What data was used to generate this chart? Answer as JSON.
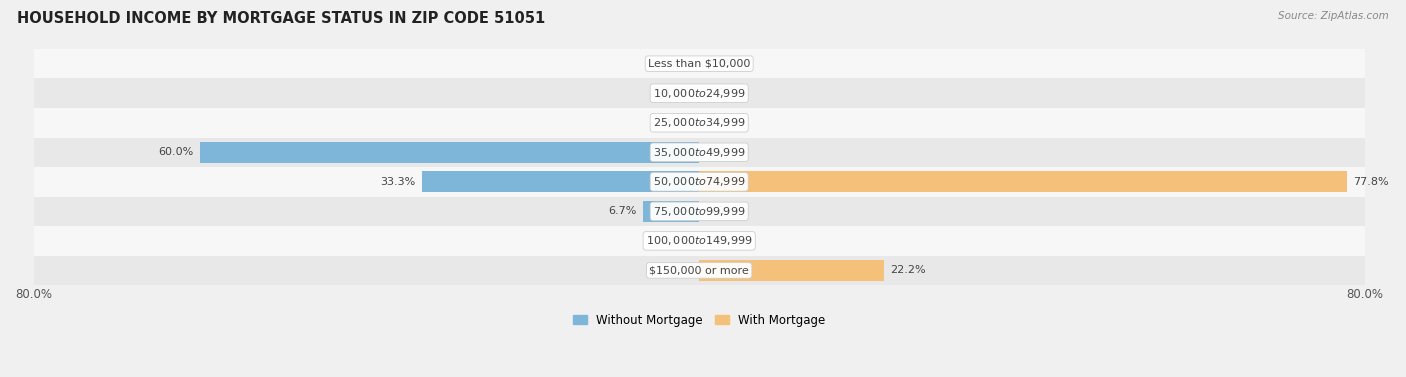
{
  "title": "HOUSEHOLD INCOME BY MORTGAGE STATUS IN ZIP CODE 51051",
  "source": "Source: ZipAtlas.com",
  "categories": [
    "Less than $10,000",
    "$10,000 to $24,999",
    "$25,000 to $34,999",
    "$35,000 to $49,999",
    "$50,000 to $74,999",
    "$75,000 to $99,999",
    "$100,000 to $149,999",
    "$150,000 or more"
  ],
  "without_mortgage": [
    0.0,
    0.0,
    0.0,
    60.0,
    33.3,
    6.7,
    0.0,
    0.0
  ],
  "with_mortgage": [
    0.0,
    0.0,
    0.0,
    0.0,
    77.8,
    0.0,
    0.0,
    22.2
  ],
  "color_without": "#7EB6D9",
  "color_with": "#F5C17A",
  "xlim": 80.0,
  "background_color": "#f0f0f0",
  "row_bg_light": "#f7f7f7",
  "row_bg_dark": "#e8e8e8",
  "label_fontsize": 8.0,
  "title_fontsize": 10.5,
  "source_fontsize": 7.5,
  "legend_fontsize": 8.5,
  "axis_label_fontsize": 8.5,
  "bar_value_fontsize": 8.0
}
